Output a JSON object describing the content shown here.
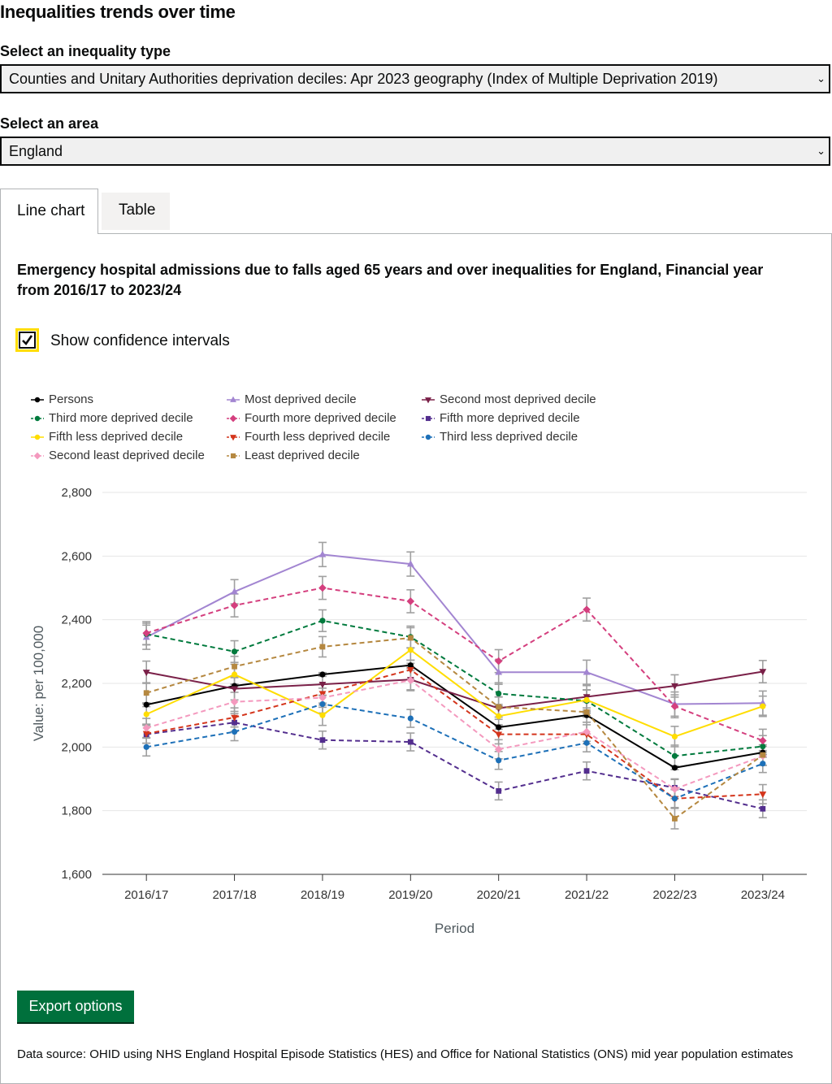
{
  "page": {
    "heading": "Inequalities trends over time"
  },
  "inequality_select": {
    "label": "Select an inequality type",
    "value": "Counties and Unitary Authorities deprivation deciles: Apr 2023 geography (Index of Multiple Deprivation 2019)"
  },
  "area_select": {
    "label": "Select an area",
    "value": "England"
  },
  "tabs": [
    {
      "label": "Line chart"
    },
    {
      "label": "Table"
    }
  ],
  "chart_section": {
    "title": "Emergency hospital admissions due to falls aged 65 years and over inequalities for England, Financial year from 2016/17 to 2023/24",
    "ci_checkbox_label": "Show confidence intervals",
    "ci_checked": true
  },
  "export_button": {
    "label": "Export options"
  },
  "data_source": "Data source: OHID using NHS England Hospital Episode Statistics (HES) and Office for National Statistics (ONS) mid year population estimates",
  "chart_data": {
    "type": "line",
    "title": "",
    "xlabel": "Period",
    "ylabel": "Value: per 100,000",
    "categories": [
      "2016/17",
      "2017/18",
      "2018/19",
      "2019/20",
      "2020/21",
      "2021/22",
      "2022/23",
      "2023/24"
    ],
    "ylim": [
      1600,
      2800
    ],
    "yticks": [
      1600,
      1800,
      2000,
      2200,
      2400,
      2600,
      2800
    ],
    "ytick_labels": [
      "1,600",
      "1,800",
      "2,000",
      "2,200",
      "2,400",
      "2,600",
      "2,800"
    ],
    "grid": true,
    "confidence_intervals": true,
    "series": [
      {
        "name": "Persons",
        "color": "#000000",
        "dashed": false,
        "marker": "circle",
        "values": [
          2133,
          2192,
          2228,
          2257,
          2062,
          2100,
          1935,
          1983
        ],
        "ci": 6
      },
      {
        "name": "Most deprived decile",
        "color": "#a285d1",
        "dashed": false,
        "marker": "triangle-up",
        "values": [
          2345,
          2488,
          2605,
          2575,
          2235,
          2235,
          2135,
          2138
        ],
        "ci": 38
      },
      {
        "name": "Second most deprived decile",
        "color": "#7a2048",
        "dashed": false,
        "marker": "triangle-down",
        "values": [
          2235,
          2183,
          2197,
          2212,
          2122,
          2158,
          2192,
          2237
        ],
        "ci": 35
      },
      {
        "name": "Third more deprived decile",
        "color": "#007a3d",
        "dashed": true,
        "marker": "circle",
        "values": [
          2355,
          2300,
          2397,
          2346,
          2168,
          2145,
          1972,
          2002
        ],
        "ci": 34
      },
      {
        "name": "Fourth more deprived decile",
        "color": "#d43f7e",
        "dashed": true,
        "marker": "diamond",
        "values": [
          2358,
          2445,
          2500,
          2458,
          2270,
          2432,
          2128,
          2020
        ],
        "ci": 36
      },
      {
        "name": "Fifth more deprived decile",
        "color": "#532e8e",
        "dashed": true,
        "marker": "square",
        "values": [
          2040,
          2077,
          2022,
          2016,
          1862,
          1925,
          1872,
          1806
        ],
        "ci": 28
      },
      {
        "name": "Fifth less deprived decile",
        "color": "#ffdd00",
        "dashed": false,
        "marker": "circle",
        "values": [
          2103,
          2228,
          2100,
          2305,
          2097,
          2148,
          2033,
          2128
        ],
        "ci": 32
      },
      {
        "name": "Fourth less deprived decile",
        "color": "#d4351c",
        "dashed": true,
        "marker": "triangle-down",
        "values": [
          2042,
          2093,
          2168,
          2243,
          2040,
          2040,
          1838,
          1852
        ],
        "ci": 30
      },
      {
        "name": "Third less deprived decile",
        "color": "#1d70b8",
        "dashed": true,
        "marker": "circle",
        "values": [
          2000,
          2048,
          2135,
          2090,
          1958,
          2013,
          1838,
          1948
        ],
        "ci": 28
      },
      {
        "name": "Second least deprived decile",
        "color": "#f499be",
        "dashed": true,
        "marker": "diamond",
        "values": [
          2060,
          2142,
          2155,
          2210,
          1993,
          2048,
          1868,
          1972
        ],
        "ci": 30
      },
      {
        "name": "Least deprived decile",
        "color": "#b58840",
        "dashed": true,
        "marker": "square",
        "values": [
          2170,
          2253,
          2315,
          2343,
          2126,
          2110,
          1775,
          1975
        ],
        "ci": 32
      }
    ]
  }
}
